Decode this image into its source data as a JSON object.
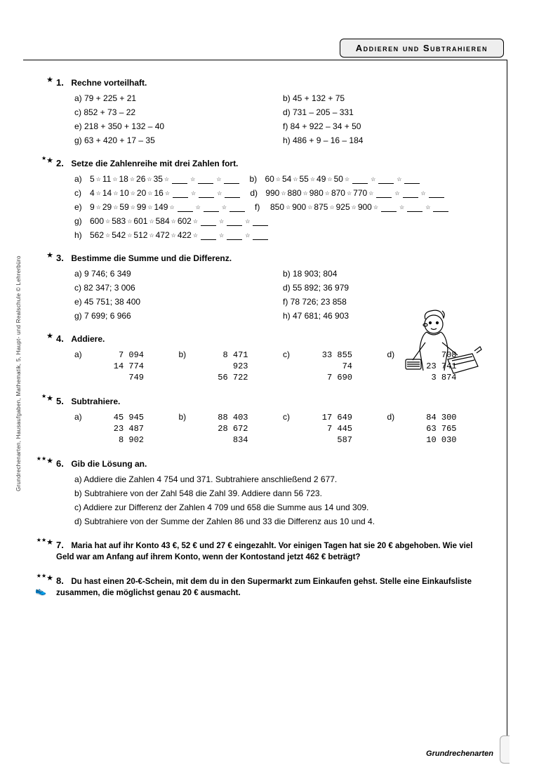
{
  "header": {
    "title": "Addieren und Subtrahieren"
  },
  "footer": {
    "category": "Grundrechenarten"
  },
  "sidetext": "Grundrechenarten, Hausaufgaben, Mathematik, 5, Haupt- und Realschule © Lehrerbüro",
  "stars": {
    "s1": "★",
    "s2": "★★",
    "s3": "★★★"
  },
  "ex1": {
    "num": "1.",
    "title": "Rechne vorteilhaft.",
    "a": "a)  79 + 225 + 21",
    "b": "b)  45 + 132 + 75",
    "c": "c)  852 + 73 – 22",
    "d": "d)  731 – 205 – 331",
    "e": "e)  218 + 350 + 132 – 40",
    "f": "f)  84 + 922 – 34 + 50",
    "g": "g)  63 + 420 + 17 – 35",
    "h": "h)  486 + 9 – 16 – 184"
  },
  "ex2": {
    "num": "2.",
    "title": "Setze die Zahlenreihe mit drei Zahlen fort.",
    "rows": [
      {
        "a_lbl": "a)",
        "a": [
          "5",
          "11",
          "18",
          "26",
          "35"
        ],
        "b_lbl": "b)",
        "b": [
          "60",
          "54",
          "55",
          "49",
          "50"
        ]
      },
      {
        "a_lbl": "c)",
        "a": [
          "4",
          "14",
          "10",
          "20",
          "16"
        ],
        "b_lbl": "d)",
        "b": [
          "990",
          "880",
          "980",
          "870",
          "770"
        ]
      },
      {
        "a_lbl": "e)",
        "a": [
          "9",
          "29",
          "59",
          "99",
          "149"
        ],
        "b_lbl": "f)",
        "b": [
          "850",
          "900",
          "875",
          "925",
          "900"
        ]
      }
    ],
    "g_lbl": "g)",
    "g": [
      "600",
      "583",
      "601",
      "584",
      "602"
    ],
    "h_lbl": "h)",
    "h": [
      "562",
      "542",
      "512",
      "472",
      "422"
    ]
  },
  "ex3": {
    "num": "3.",
    "title": "Bestimme die Summe und die Differenz.",
    "a": "a)  9 746; 6 349",
    "b": "b)  18 903; 804",
    "c": "c)  82 347; 3 006",
    "d": "d)  55 892; 36 979",
    "e": "e)  45 751; 38 400",
    "f": "f)  78 726; 23 858",
    "g": "g)  7 699; 6 966",
    "h": "h)  47 681; 46 903"
  },
  "ex4": {
    "num": "4.",
    "title": "Addiere.",
    "cols": [
      {
        "lbl": "a)",
        "v": [
          "7 094",
          "14 774",
          "749"
        ]
      },
      {
        "lbl": "b)",
        "v": [
          "8 471",
          "923",
          "56 722"
        ]
      },
      {
        "lbl": "c)",
        "v": [
          "33 855",
          "74",
          "7 690"
        ]
      },
      {
        "lbl": "d)",
        "v": [
          "708",
          "23 741",
          "3 874"
        ]
      }
    ]
  },
  "ex5": {
    "num": "5.",
    "title": "Subtrahiere.",
    "cols": [
      {
        "lbl": "a)",
        "v": [
          "45 945",
          "23 487",
          "8 902"
        ]
      },
      {
        "lbl": "b)",
        "v": [
          "88 403",
          "28 672",
          "834"
        ]
      },
      {
        "lbl": "c)",
        "v": [
          "17 649",
          "7 445",
          "587"
        ]
      },
      {
        "lbl": "d)",
        "v": [
          "84 300",
          "63 765",
          "10 030"
        ]
      }
    ]
  },
  "ex6": {
    "num": "6.",
    "title": "Gib die Lösung an.",
    "a": "a)  Addiere die Zahlen 4 754 und 371. Subtrahiere anschließend 2 677.",
    "b": "b)  Subtrahiere von der Zahl 548 die Zahl 39. Addiere dann 56 723.",
    "c": "c)  Addiere zur Differenz der Zahlen 4 709 und 658 die Summe aus 14 und 309.",
    "d": "d)  Subtrahiere von der Summe der Zahlen 86 und 33 die Differenz aus 10 und 4."
  },
  "ex7": {
    "num": "7.",
    "text": "Maria hat auf ihr Konto 43 €, 52 € und 27 € eingezahlt. Vor einigen Tagen hat sie 20 € abgehoben. Wie viel Geld war am Anfang auf ihrem Konto, wenn der Kontostand jetzt 462 € beträgt?"
  },
  "ex8": {
    "num": "8.",
    "text": "Du hast einen 20-€-Schein, mit dem du in den Supermarkt zum Einkaufen gehst. Stelle eine Einkaufsliste zusammen, die möglichst genau 20 € ausmacht."
  }
}
